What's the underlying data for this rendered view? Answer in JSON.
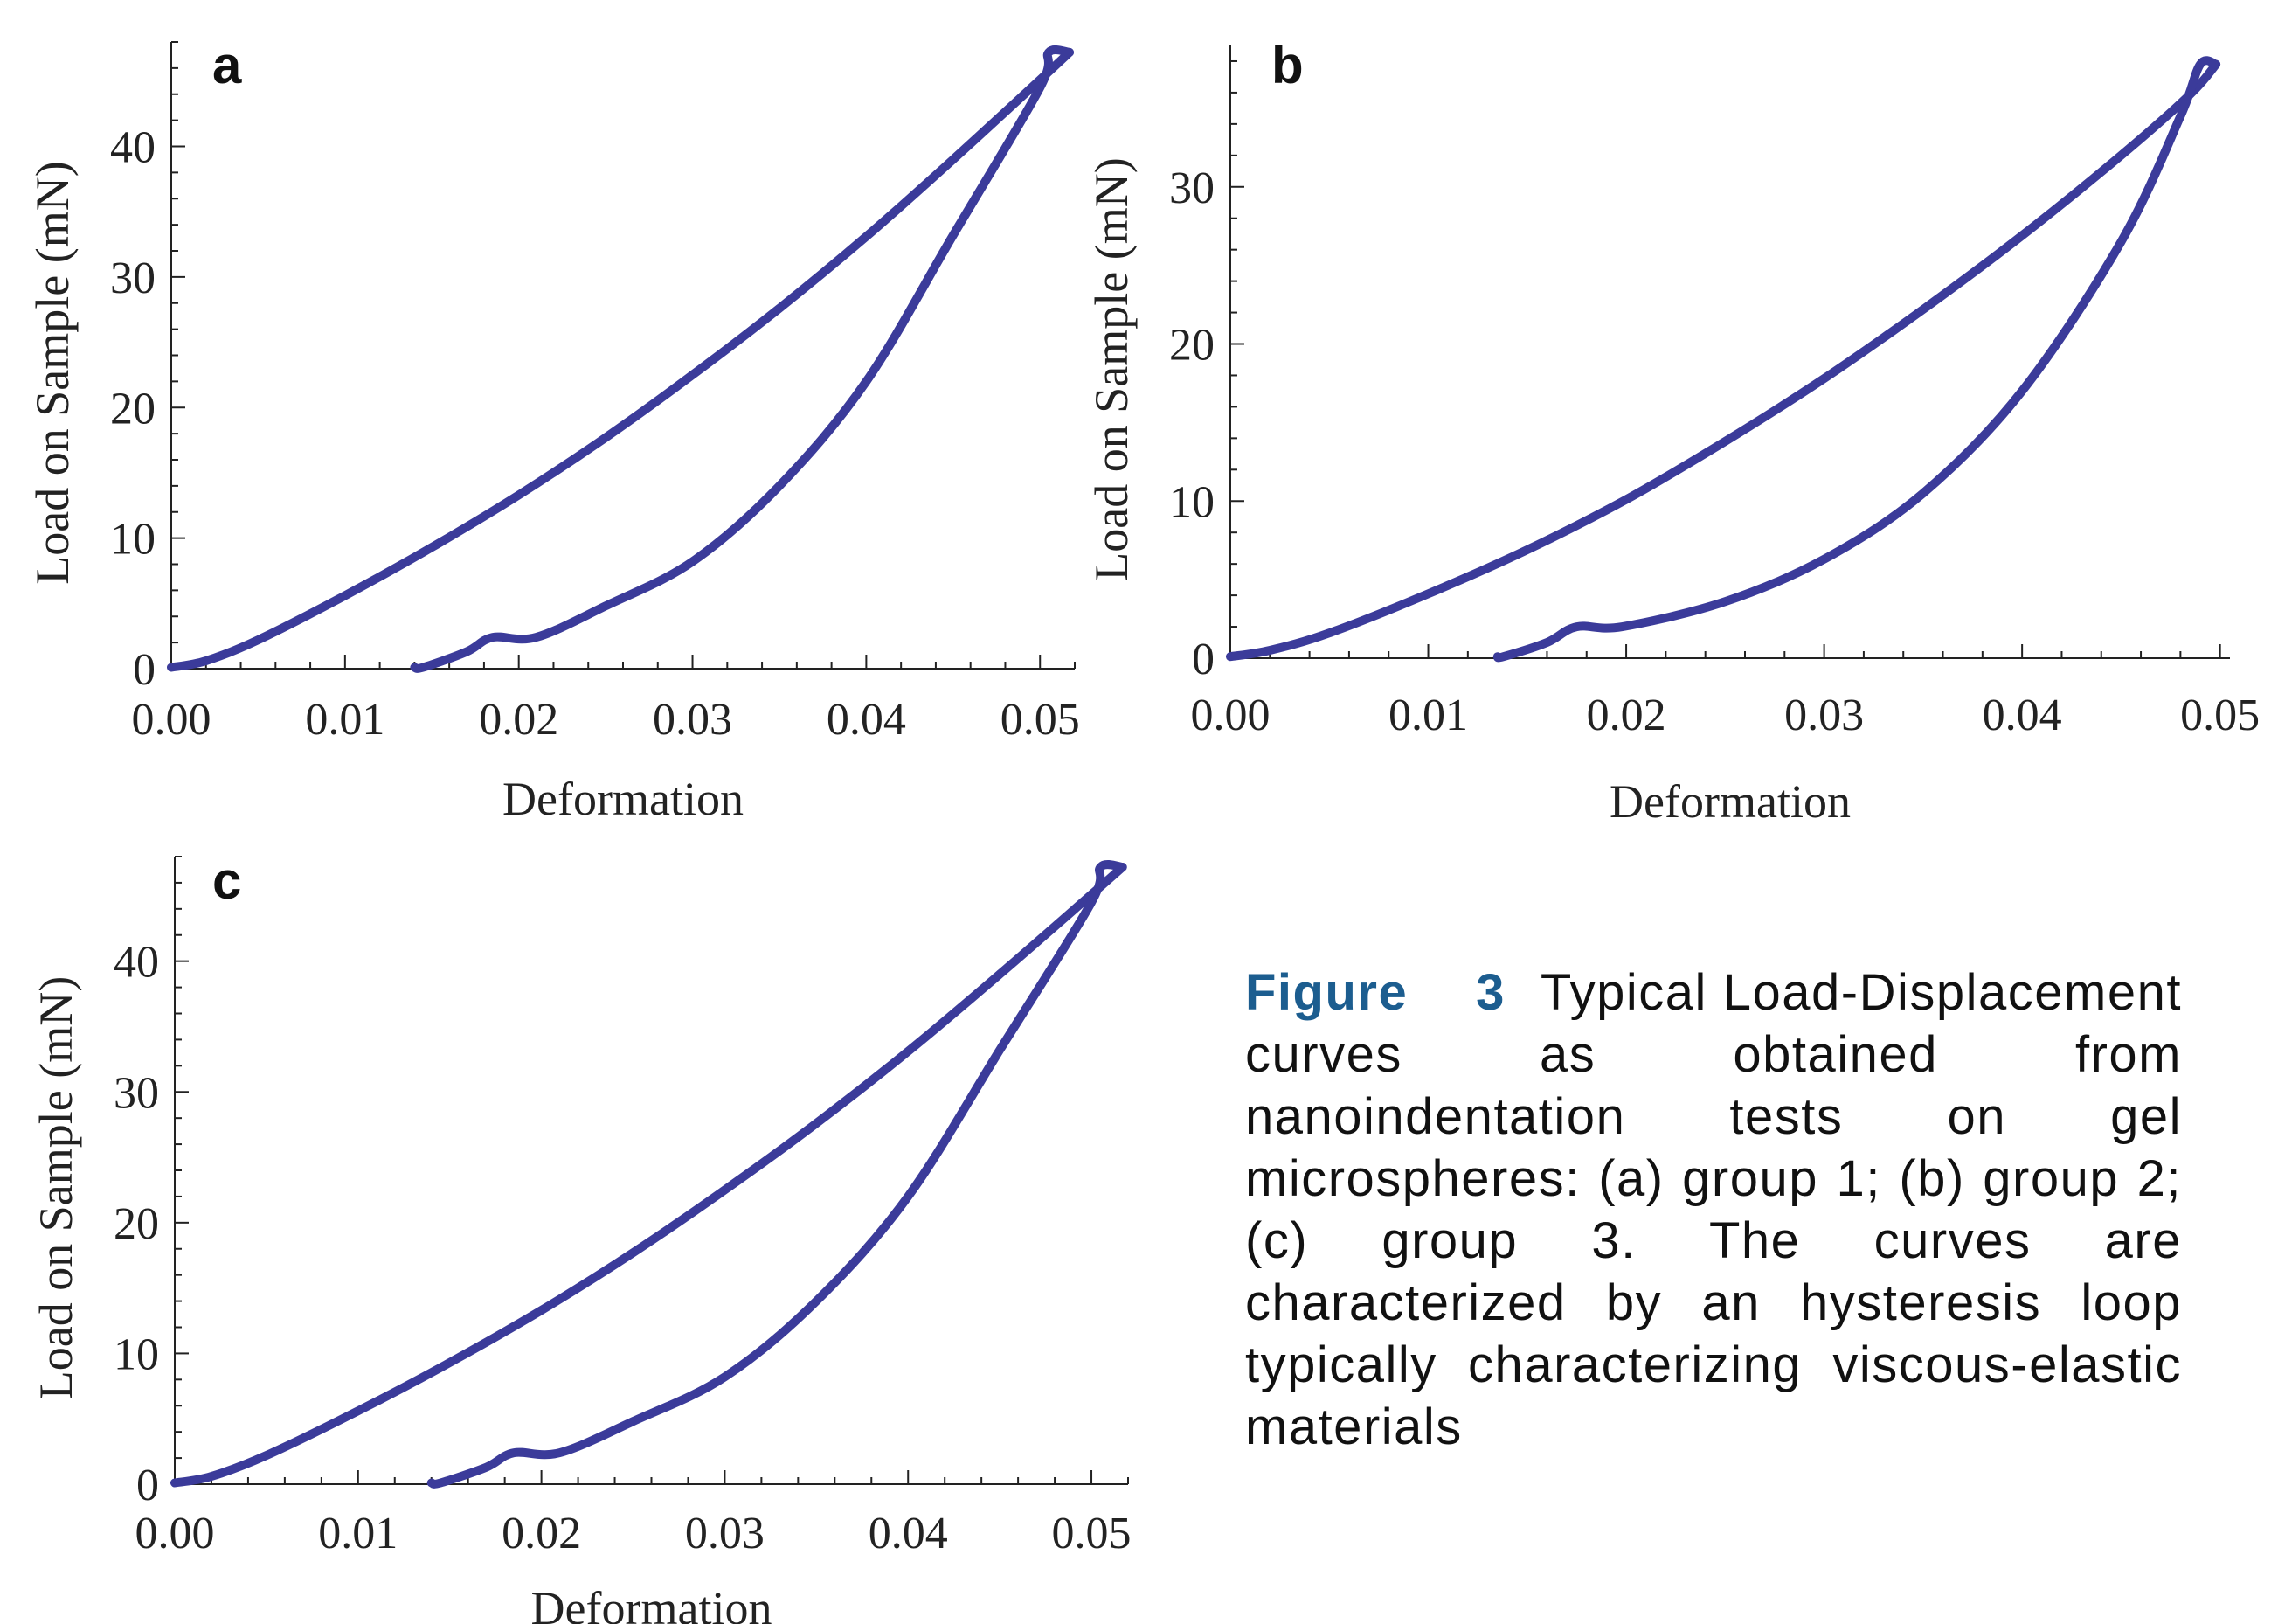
{
  "figure": {
    "caption_label": "Figure 3",
    "caption_text": "Typical Load-Displacement curves as obtained from nanoindentation tests on gel microspheres: (a) group 1; (b) group 2; (c) group 3. The curves are characterized by an hysteresis loop typically characterizing viscous-elastic materials",
    "caption_label_color": "#1c5d8f",
    "curve_color": "#3b3b9a"
  },
  "chart_data": [
    {
      "panel": "a",
      "type": "line",
      "xlabel": "Deformation",
      "ylabel": "Load on Sample (mN)",
      "xlim": [
        0,
        0.052
      ],
      "ylim": [
        0,
        48
      ],
      "xticks": [
        "0.00",
        "0.01",
        "0.02",
        "0.03",
        "0.04",
        "0.05"
      ],
      "xtick_values": [
        0,
        0.01,
        0.02,
        0.03,
        0.04,
        0.05
      ],
      "yticks": [
        "0",
        "10",
        "20",
        "30",
        "40"
      ],
      "ytick_values": [
        0,
        10,
        20,
        30,
        40
      ],
      "grid": false,
      "series": [
        {
          "segment": "loading",
          "x": [
            0,
            0.002,
            0.005,
            0.01,
            0.015,
            0.02,
            0.025,
            0.03,
            0.035,
            0.04,
            0.045,
            0.05,
            0.0517
          ],
          "y": [
            0.1,
            0.6,
            2.2,
            5.6,
            9.3,
            13.3,
            17.7,
            22.5,
            27.6,
            33.1,
            39.0,
            45.1,
            47.2
          ]
        },
        {
          "segment": "unloading",
          "x": [
            0.0517,
            0.0505,
            0.05,
            0.045,
            0.04,
            0.035,
            0.03,
            0.025,
            0.021,
            0.0185,
            0.017,
            0.0145,
            0.014
          ],
          "y": [
            47.2,
            47.2,
            44.5,
            33.2,
            22.0,
            14.0,
            8.2,
            4.8,
            2.4,
            2.4,
            1.3,
            0.1,
            0.1
          ]
        }
      ]
    },
    {
      "panel": "b",
      "type": "line",
      "xlabel": "Deformation",
      "ylabel": "Load on Sample (mN)",
      "xlim": [
        0,
        0.0505
      ],
      "ylim": [
        0,
        39
      ],
      "xticks": [
        "0.00",
        "0.01",
        "0.02",
        "0.03",
        "0.04",
        "0.05"
      ],
      "xtick_values": [
        0,
        0.01,
        0.02,
        0.03,
        0.04,
        0.05
      ],
      "yticks": [
        "0",
        "10",
        "20",
        "30"
      ],
      "ytick_values": [
        0,
        10,
        20,
        30
      ],
      "grid": false,
      "series": [
        {
          "segment": "loading",
          "x": [
            0,
            0.002,
            0.005,
            0.01,
            0.015,
            0.02,
            0.025,
            0.03,
            0.035,
            0.04,
            0.045,
            0.0485,
            0.0498
          ],
          "y": [
            0.1,
            0.5,
            1.6,
            4.1,
            6.9,
            10.1,
            13.8,
            17.8,
            22.2,
            26.9,
            32.0,
            35.9,
            37.8
          ]
        },
        {
          "segment": "unloading",
          "x": [
            0.0498,
            0.049,
            0.048,
            0.045,
            0.04,
            0.035,
            0.03,
            0.025,
            0.0198,
            0.0175,
            0.016,
            0.0138,
            0.0135
          ],
          "y": [
            37.8,
            37.8,
            34.5,
            26.5,
            17.0,
            10.5,
            6.3,
            3.6,
            2.0,
            2.0,
            1.0,
            0.1,
            0.1
          ]
        }
      ]
    },
    {
      "panel": "c",
      "type": "line",
      "xlabel": "Deformation",
      "ylabel": "Load on Sample (mN)",
      "xlim": [
        0,
        0.052
      ],
      "ylim": [
        0,
        48
      ],
      "xticks": [
        "0.00",
        "0.01",
        "0.02",
        "0.03",
        "0.04",
        "0.05"
      ],
      "xtick_values": [
        0,
        0.01,
        0.02,
        0.03,
        0.04,
        0.05
      ],
      "yticks": [
        "0",
        "10",
        "20",
        "30",
        "40"
      ],
      "ytick_values": [
        0,
        10,
        20,
        30,
        40
      ],
      "grid": false,
      "series": [
        {
          "segment": "loading",
          "x": [
            0,
            0.002,
            0.005,
            0.01,
            0.015,
            0.02,
            0.025,
            0.03,
            0.035,
            0.04,
            0.045,
            0.05,
            0.0517
          ],
          "y": [
            0.1,
            0.6,
            2.2,
            5.6,
            9.3,
            13.3,
            17.7,
            22.5,
            27.6,
            33.1,
            39.0,
            45.1,
            47.2
          ]
        },
        {
          "segment": "unloading",
          "x": [
            0.0517,
            0.0505,
            0.05,
            0.045,
            0.04,
            0.035,
            0.03,
            0.025,
            0.021,
            0.0185,
            0.017,
            0.0145,
            0.014
          ],
          "y": [
            47.2,
            47.2,
            44.5,
            33.2,
            22.0,
            14.0,
            8.2,
            4.8,
            2.4,
            2.4,
            1.3,
            0.1,
            0.1
          ]
        }
      ]
    }
  ]
}
